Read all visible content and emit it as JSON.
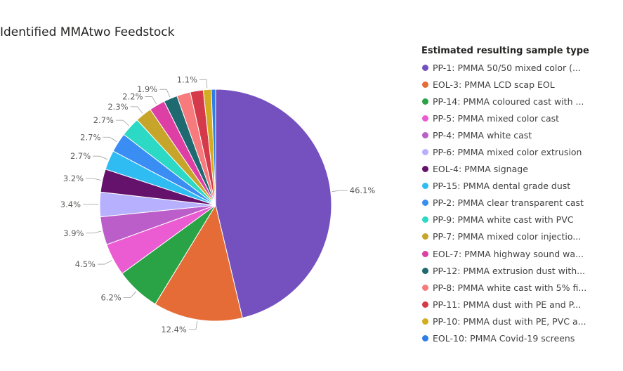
{
  "title": "Identified MMAtwo Feedstock",
  "chart_data": {
    "type": "pie",
    "legend_title": "Estimated resulting sample type",
    "legend_position": "right",
    "slices": [
      {
        "label": "PP-1: PMMA 50/50 mixed color (...",
        "value": 46.1,
        "value_label": "46.1%",
        "color": "#7451be"
      },
      {
        "label": "EOL-3: PMMA LCD scap EOL",
        "value": 12.4,
        "value_label": "12.4%",
        "color": "#e66c37"
      },
      {
        "label": "PP-14: PMMA coloured cast with ...",
        "value": 6.2,
        "value_label": "6.2%",
        "color": "#2aa246"
      },
      {
        "label": "PP-5: PMMA mixed color cast",
        "value": 4.5,
        "value_label": "4.5%",
        "color": "#eb5bd2"
      },
      {
        "label": "PP-4: PMMA white cast",
        "value": 3.9,
        "value_label": "3.9%",
        "color": "#bb5ec9"
      },
      {
        "label": "PP-6: PMMA mixed color extrusion",
        "value": 3.4,
        "value_label": "3.4%",
        "color": "#b6b0ff"
      },
      {
        "label": "EOL-4: PMMA signage",
        "value": 3.2,
        "value_label": "3.2%",
        "color": "#64126c"
      },
      {
        "label": "PP-15: PMMA dental grade dust",
        "value": 2.7,
        "value_label": "2.7%",
        "color": "#2fbcf2"
      },
      {
        "label": "PP-2: PMMA clear transparent cast",
        "value": 2.7,
        "value_label": "2.7%",
        "color": "#3a8df2"
      },
      {
        "label": "PP-9: PMMA white cast with PVC",
        "value": 2.7,
        "value_label": "2.7%",
        "color": "#2bd9c4"
      },
      {
        "label": "PP-7: PMMA mixed color injectio...",
        "value": 2.3,
        "value_label": "2.3%",
        "color": "#c7a52a"
      },
      {
        "label": "EOL-7: PMMA highway sound wa...",
        "value": 2.2,
        "value_label": "2.2%",
        "color": "#dd3fa4"
      },
      {
        "label": "PP-12: PMMA extrusion dust with...",
        "value": 1.9,
        "value_label": "1.9%",
        "color": "#1f6970"
      },
      {
        "label": "PP-8: PMMA white cast with 5% fi...",
        "value": 1.9,
        "value_label": "",
        "color": "#f77b7d"
      },
      {
        "label": "PP-11: PMMA dust with PE and P...",
        "value": 1.8,
        "value_label": "",
        "color": "#d53a4a"
      },
      {
        "label": "PP-10: PMMA dust with PE, PVC a...",
        "value": 1.1,
        "value_label": "1.1%",
        "color": "#d3ac1f"
      },
      {
        "label": "EOL-10: PMMA Covid-19 screens",
        "value": 0.6,
        "value_label": "",
        "color": "#2e7ee8"
      }
    ]
  }
}
